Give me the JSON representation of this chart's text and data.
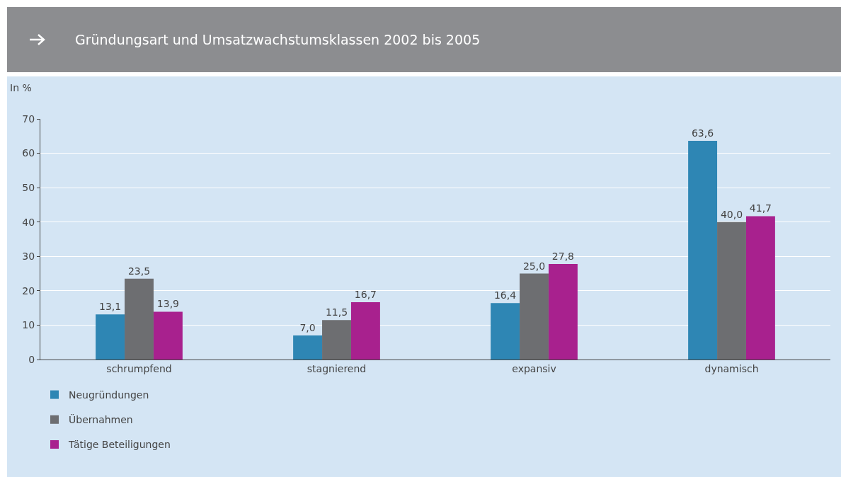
{
  "chart_data": {
    "type": "bar",
    "title": "Gründungsart und Umsatzwachstumsklassen 2002 bis 2005",
    "ylabel": "In %",
    "categories": [
      "schrumpfend",
      "stagnierend",
      "expansiv",
      "dynamisch"
    ],
    "series": [
      {
        "name": "Neugründungen",
        "color": "#2e86b4",
        "values": [
          13.1,
          7.0,
          16.4,
          63.6
        ],
        "value_labels": [
          "13,1",
          "7,0",
          "16,4",
          "63,6"
        ]
      },
      {
        "name": "Übernahmen",
        "color": "#6d6e71",
        "values": [
          23.5,
          11.5,
          25.0,
          40.0
        ],
        "value_labels": [
          "23,5",
          "11,5",
          "25,0",
          "40,0"
        ]
      },
      {
        "name": "Tätige Beteiligungen",
        "color": "#a8218e",
        "values": [
          13.9,
          16.7,
          27.8,
          41.7
        ],
        "value_labels": [
          "13,9",
          "16,7",
          "27,8",
          "41,7"
        ]
      }
    ],
    "ylim": [
      0,
      70
    ],
    "yticks": [
      0,
      10,
      20,
      30,
      40,
      50,
      60,
      70
    ],
    "grid": "y",
    "legend": "bottom left"
  }
}
